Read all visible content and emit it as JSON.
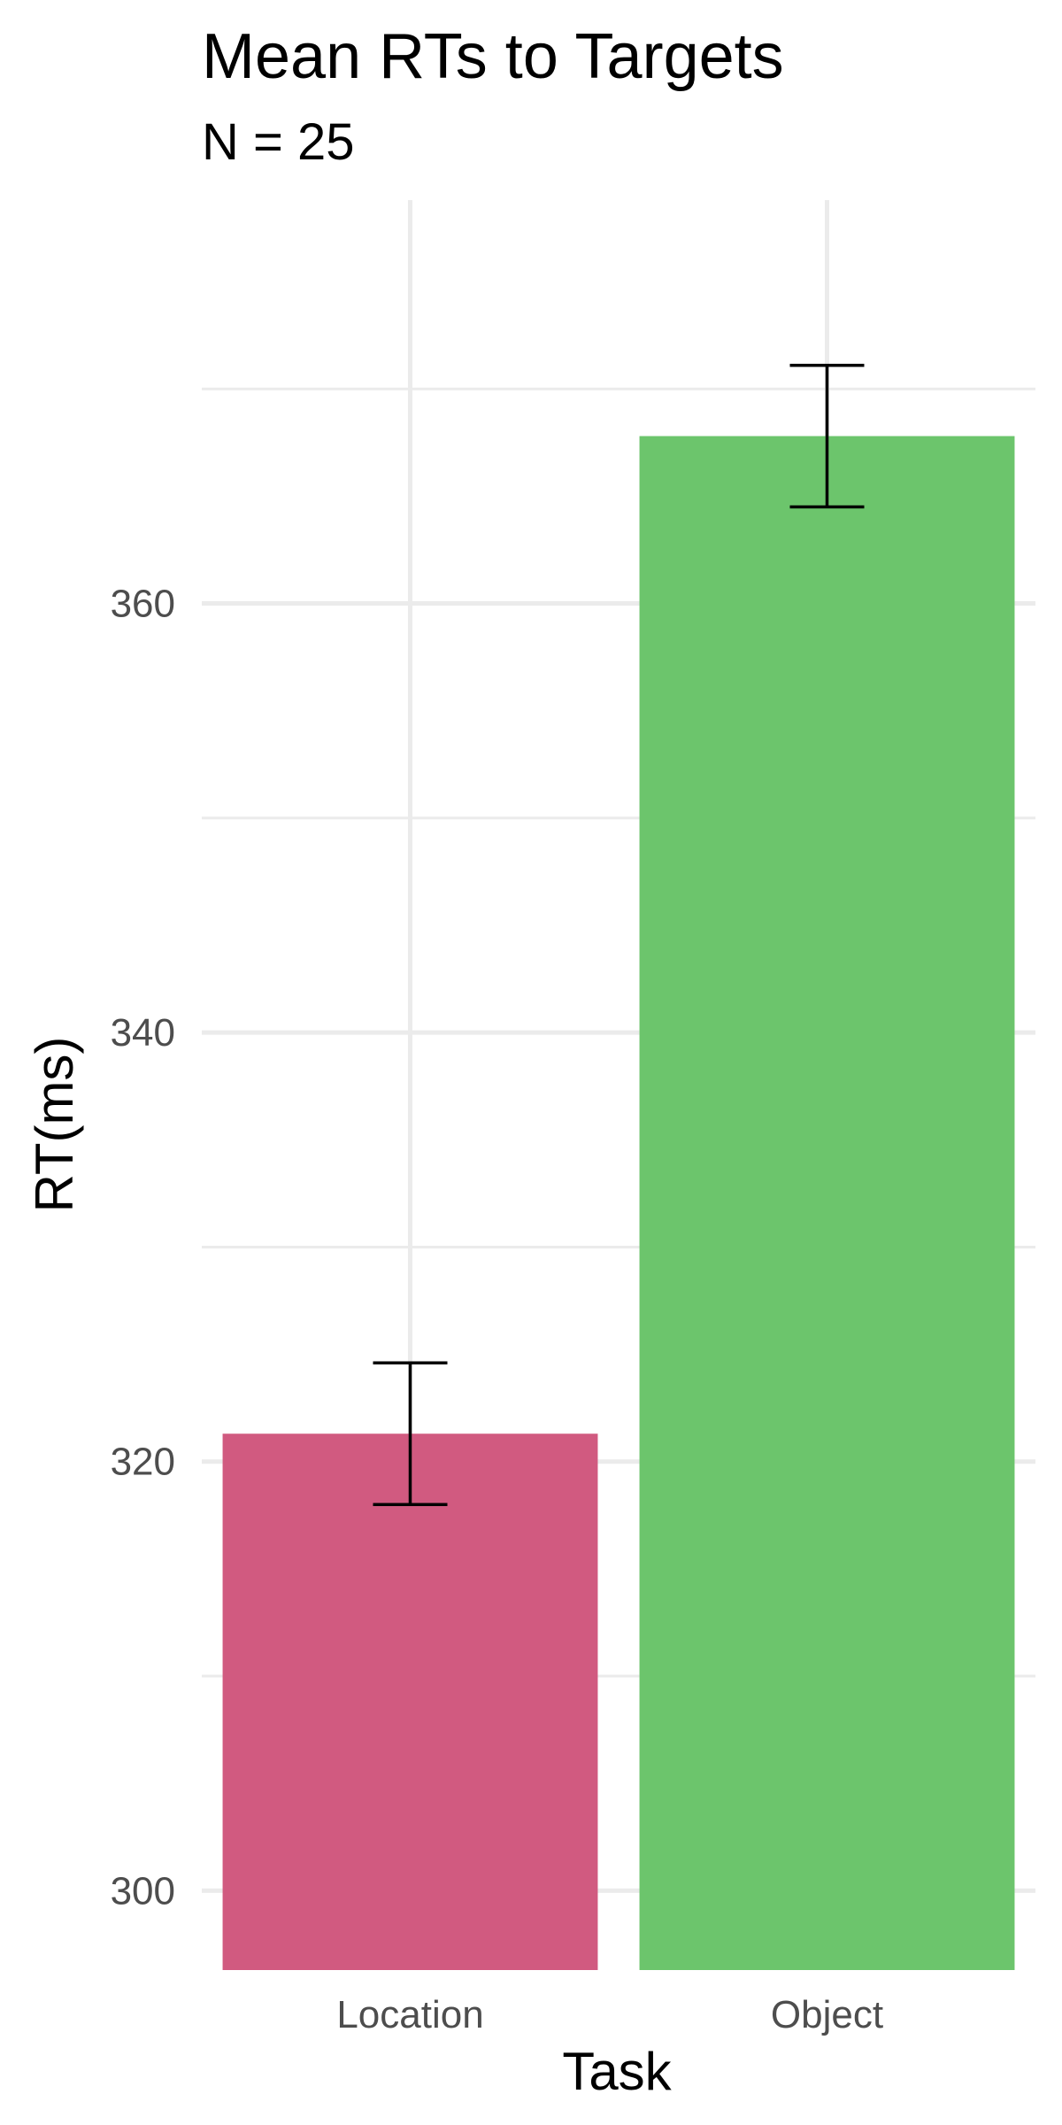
{
  "chart_data": {
    "type": "bar",
    "title": "Mean RTs to Targets",
    "subtitle": "N = 25",
    "xlabel": "Task",
    "ylabel": "RT(ms)",
    "categories": [
      "Location",
      "Object"
    ],
    "values": [
      321.3,
      367.8
    ],
    "error_bars": [
      {
        "lower": 318.0,
        "upper": 324.6
      },
      {
        "lower": 364.5,
        "upper": 371.1
      }
    ],
    "colors": [
      "#D15A80",
      "#6CC56C"
    ],
    "ylim": [
      296.3,
      378.8
    ],
    "yticks": [
      300,
      320,
      340,
      360
    ],
    "ytick_labels": [
      "300",
      "320",
      "340",
      "360"
    ],
    "grid": true,
    "legend": false
  }
}
